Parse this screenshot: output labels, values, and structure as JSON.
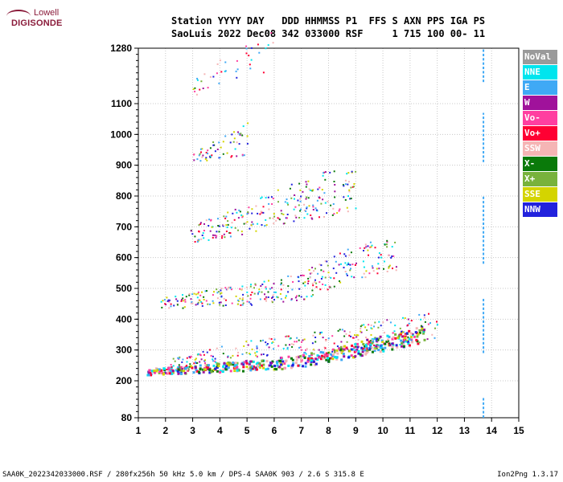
{
  "logo": {
    "top": "Lowell",
    "bottom": "DIGISONDE"
  },
  "header": {
    "line1": "Station YYYY DAY   DDD HHMMSS P1  FFS S AXN PPS IGA PS",
    "line2": "SaoLuis 2022 Dec08 342 033000 RSF     1 715 100 00- 11"
  },
  "footer": {
    "left": "SAA0K_2022342033000.RSF / 280fx256h 50 kHz 5.0 km / DPS-4 SAA0K 903 / 2.6 S 315.8 E",
    "right": "Ion2Png 1.3.17"
  },
  "legend": [
    {
      "label": "NoVal",
      "color": "#9a9a9a"
    },
    {
      "label": "NNE",
      "color": "#00e5ee"
    },
    {
      "label": "E",
      "color": "#3fa9f5"
    },
    {
      "label": "W",
      "color": "#a0129b"
    },
    {
      "label": "Vo-",
      "color": "#ff3fa0"
    },
    {
      "label": "Vo+",
      "color": "#ff0033"
    },
    {
      "label": "SSW",
      "color": "#f5b5b5"
    },
    {
      "label": "X-",
      "color": "#0a7a0a"
    },
    {
      "label": "X+",
      "color": "#78b23c"
    },
    {
      "label": "SSE",
      "color": "#d4d400"
    },
    {
      "label": "NNW",
      "color": "#2222dd"
    }
  ],
  "chart_data": {
    "type": "scatter",
    "xlabel": "",
    "ylabel": "",
    "xlim": [
      1,
      15
    ],
    "ylim": [
      80,
      1280
    ],
    "x_ticks": [
      "1",
      "2",
      "3",
      "4",
      "5",
      "6",
      "7",
      "8",
      "9",
      "10",
      "11",
      "12",
      "13",
      "14",
      "15"
    ],
    "y_ticks": [
      "80",
      "200",
      "300",
      "400",
      "500",
      "600",
      "700",
      "800",
      "900",
      "1000",
      "1100",
      "1280"
    ],
    "grid": true,
    "traces": [
      {
        "name": "F-layer O-trace",
        "x": [
          1.3,
          2.0,
          3.0,
          4.0,
          5.0,
          6.0,
          7.0,
          8.0,
          9.0,
          10.0,
          10.5,
          11.0,
          11.5
        ],
        "y": [
          232,
          236,
          240,
          246,
          252,
          258,
          268,
          285,
          305,
          325,
          335,
          345,
          355
        ]
      },
      {
        "name": "F-layer X-trace",
        "x": [
          2.0,
          3.0,
          4.0,
          5.0,
          6.0,
          7.0,
          8.0,
          9.0,
          10.0,
          11.0,
          12.0
        ],
        "y": [
          252,
          268,
          290,
          305,
          315,
          320,
          330,
          340,
          355,
          370,
          382
        ]
      },
      {
        "name": "2-hop trace",
        "x": [
          1.8,
          3.0,
          4.0,
          5.0,
          6.0,
          7.0,
          7.8,
          8.5,
          9.5,
          10.5
        ],
        "y": [
          452,
          462,
          472,
          480,
          492,
          510,
          540,
          575,
          595,
          610
        ]
      },
      {
        "name": "3-hop trace",
        "x": [
          2.9,
          4.0,
          5.0,
          6.0,
          7.0,
          8.0,
          9.0
        ],
        "y": [
          680,
          700,
          730,
          760,
          790,
          810,
          830
        ]
      },
      {
        "name": "4-hop trace",
        "x": [
          3.0,
          4.0,
          5.0
        ],
        "y": [
          930,
          960,
          990
        ]
      },
      {
        "name": "5-hop trace",
        "x": [
          3.0,
          3.5,
          4.2,
          6.0
        ],
        "y": [
          1150,
          1180,
          1220,
          1270
        ]
      }
    ],
    "vertical_marker": {
      "x": 13.7,
      "y_ranges": [
        [
          1170,
          1280
        ],
        [
          910,
          1070
        ],
        [
          580,
          800
        ],
        [
          290,
          470
        ],
        [
          80,
          150
        ]
      ]
    }
  }
}
